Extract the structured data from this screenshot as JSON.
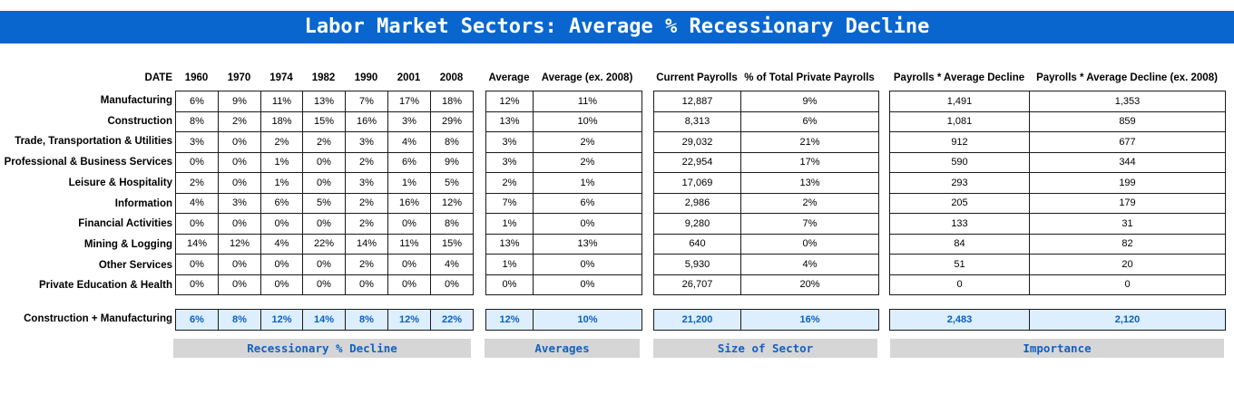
{
  "title": "Labor Market Sectors: Average % Recessionary Decline",
  "header": {
    "date_label": "DATE",
    "years": [
      "1960",
      "1970",
      "1974",
      "1982",
      "1990",
      "2001",
      "2008"
    ],
    "average": "Average",
    "average_ex": "Average (ex. 2008)",
    "current_payrolls": "Current Payrolls",
    "pct_total": "% of Total Private Payrolls",
    "payrolls_avg": "Payrolls * Average Decline",
    "payrolls_avg_ex": "Payrolls * Average Decline (ex. 2008)"
  },
  "rows": [
    {
      "label": "Manufacturing",
      "years": [
        "6%",
        "9%",
        "11%",
        "13%",
        "7%",
        "17%",
        "18%"
      ],
      "avg": "12%",
      "avg_ex": "11%",
      "payrolls": "12,887",
      "pct": "9%",
      "imp": "1,491",
      "imp_ex": "1,353"
    },
    {
      "label": "Construction",
      "years": [
        "8%",
        "2%",
        "18%",
        "15%",
        "16%",
        "3%",
        "29%"
      ],
      "avg": "13%",
      "avg_ex": "10%",
      "payrolls": "8,313",
      "pct": "6%",
      "imp": "1,081",
      "imp_ex": "859"
    },
    {
      "label": "Trade, Transportation & Utilities",
      "years": [
        "3%",
        "0%",
        "2%",
        "2%",
        "3%",
        "4%",
        "8%"
      ],
      "avg": "3%",
      "avg_ex": "2%",
      "payrolls": "29,032",
      "pct": "21%",
      "imp": "912",
      "imp_ex": "677"
    },
    {
      "label": "Professional & Business Services",
      "years": [
        "0%",
        "0%",
        "1%",
        "0%",
        "2%",
        "6%",
        "9%"
      ],
      "avg": "3%",
      "avg_ex": "2%",
      "payrolls": "22,954",
      "pct": "17%",
      "imp": "590",
      "imp_ex": "344"
    },
    {
      "label": "Leisure & Hospitality",
      "years": [
        "2%",
        "0%",
        "1%",
        "0%",
        "3%",
        "1%",
        "5%"
      ],
      "avg": "2%",
      "avg_ex": "1%",
      "payrolls": "17,069",
      "pct": "13%",
      "imp": "293",
      "imp_ex": "199"
    },
    {
      "label": "Information",
      "years": [
        "4%",
        "3%",
        "6%",
        "5%",
        "2%",
        "16%",
        "12%"
      ],
      "avg": "7%",
      "avg_ex": "6%",
      "payrolls": "2,986",
      "pct": "2%",
      "imp": "205",
      "imp_ex": "179"
    },
    {
      "label": "Financial Activities",
      "years": [
        "0%",
        "0%",
        "0%",
        "0%",
        "2%",
        "0%",
        "8%"
      ],
      "avg": "1%",
      "avg_ex": "0%",
      "payrolls": "9,280",
      "pct": "7%",
      "imp": "133",
      "imp_ex": "31"
    },
    {
      "label": "Mining & Logging",
      "years": [
        "14%",
        "12%",
        "4%",
        "22%",
        "14%",
        "11%",
        "15%"
      ],
      "avg": "13%",
      "avg_ex": "13%",
      "payrolls": "640",
      "pct": "0%",
      "imp": "84",
      "imp_ex": "82"
    },
    {
      "label": "Other Services",
      "years": [
        "0%",
        "0%",
        "0%",
        "0%",
        "2%",
        "0%",
        "4%"
      ],
      "avg": "1%",
      "avg_ex": "0%",
      "payrolls": "5,930",
      "pct": "4%",
      "imp": "51",
      "imp_ex": "20"
    },
    {
      "label": "Private Education & Health",
      "years": [
        "0%",
        "0%",
        "0%",
        "0%",
        "0%",
        "0%",
        "0%"
      ],
      "avg": "0%",
      "avg_ex": "0%",
      "payrolls": "26,707",
      "pct": "20%",
      "imp": "0",
      "imp_ex": "0"
    }
  ],
  "summary": {
    "label": "Construction + Manufacturing",
    "years": [
      "6%",
      "8%",
      "12%",
      "14%",
      "8%",
      "12%",
      "22%"
    ],
    "avg": "12%",
    "avg_ex": "10%",
    "payrolls": "21,200",
    "pct": "16%",
    "imp": "2,483",
    "imp_ex": "2,120"
  },
  "footers": {
    "recessionary": "Recessionary % Decline",
    "averages": "Averages",
    "size": "Size of Sector",
    "importance": "Importance"
  },
  "colors": {
    "banner": "#0a66cf",
    "summary_fill": "#ddeeff",
    "summary_text": "#0a5fc2",
    "footer_fill": "#d6d6d6",
    "footer_text": "#1260c4"
  }
}
